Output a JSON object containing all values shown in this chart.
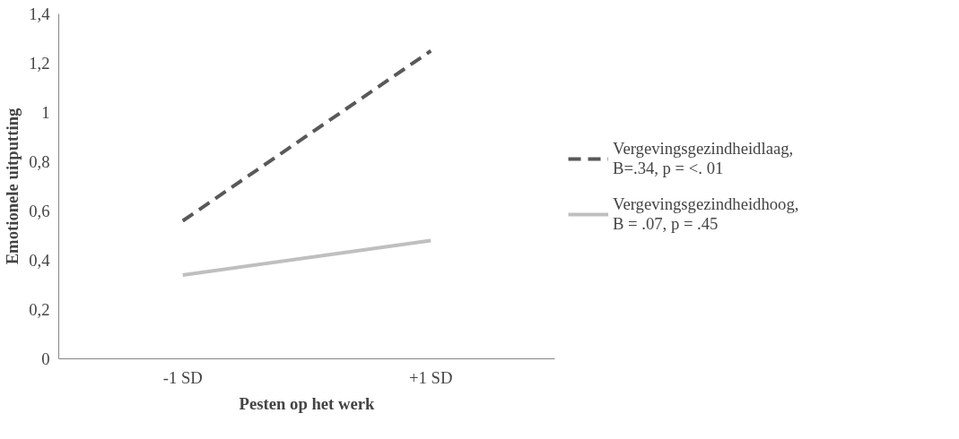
{
  "chart_data": {
    "type": "line",
    "xlabel": "Pesten op het werk",
    "ylabel": "Emotionele uitputting",
    "categories": [
      "-1 SD",
      "+1 SD"
    ],
    "series": [
      {
        "name": "Vergevingsgezindheidlaag,\nB=.34, p = <. 01",
        "color": "#595959",
        "line_style": "dashed",
        "values": [
          0.56,
          1.25
        ]
      },
      {
        "name": "Vergevingsgezindheidhoog,\nB = .07, p = .45",
        "color": "#bfbfbf",
        "line_style": "solid",
        "values": [
          0.34,
          0.48
        ]
      }
    ],
    "ylim": [
      0,
      1.4
    ],
    "yticks": [
      0,
      {
        "value": 0.2,
        "label": "0,2"
      },
      {
        "value": 0.4,
        "label": "0,4"
      },
      {
        "value": 0.6,
        "label": "0,6"
      },
      {
        "value": 0.8,
        "label": "0,8"
      },
      1,
      {
        "value": 1.2,
        "label": "1,2"
      },
      {
        "value": 1.4,
        "label": "1,4"
      }
    ],
    "grid": false,
    "legend": "right",
    "marker": "none"
  }
}
